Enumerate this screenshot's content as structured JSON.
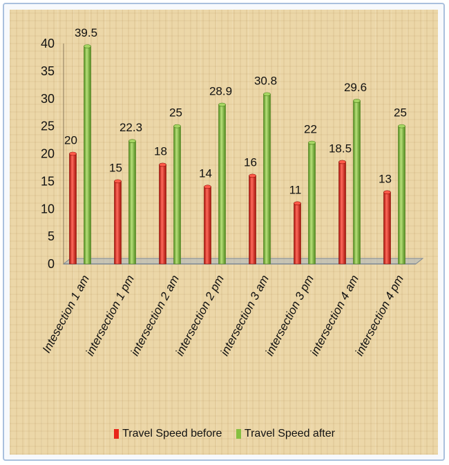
{
  "chart_data": {
    "type": "bar",
    "categories": [
      "Intesection 1 am",
      "intersection 1 pm",
      "intersection 2 am",
      "intersection 2 pm",
      "intersection 3 am",
      "intersection 3 pm",
      "intersection 4 am",
      "intersection 4 pm"
    ],
    "series": [
      {
        "name": "Travel Speed before",
        "color": "#e8261a",
        "values": [
          20,
          15,
          18,
          14,
          16,
          11,
          18.5,
          13
        ]
      },
      {
        "name": "Travel Speed after",
        "color": "#86c040",
        "values": [
          39.5,
          22.3,
          25,
          28.9,
          30.8,
          22,
          29.6,
          25
        ]
      }
    ],
    "data_labels": [
      [
        "20",
        "15",
        "18",
        "14",
        "16",
        "11",
        "18.5",
        "13"
      ],
      [
        "39.5",
        "22.3",
        "25",
        "28.9",
        "30.8",
        "22",
        "29.6",
        "25"
      ]
    ],
    "ytick_labels": [
      "0",
      "5",
      "10",
      "15",
      "20",
      "25",
      "30",
      "35",
      "40"
    ],
    "ylim": [
      0,
      40
    ],
    "grid": false,
    "legend_position": "bottom",
    "style": "3d cylinder bars on textured background"
  }
}
